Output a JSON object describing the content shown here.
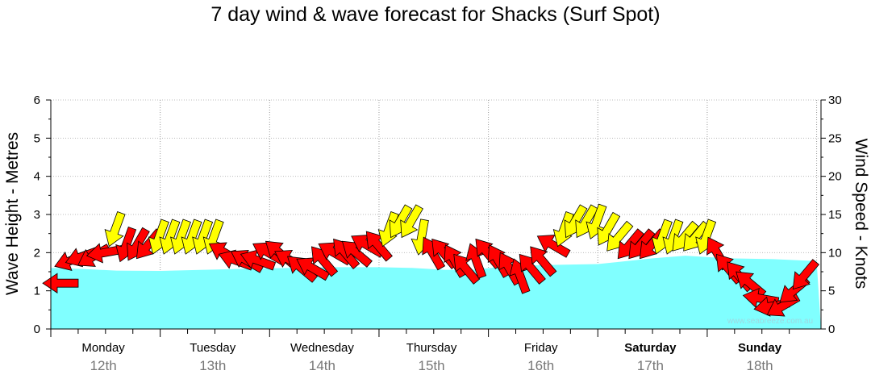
{
  "chart_data": {
    "type": "area",
    "title": "7 day wind & wave forecast for Shacks (Surf Spot)",
    "ylabel_left": "Wave Height - Metres",
    "ylabel_right": "Wind Speed - Knots",
    "ylim_left": [
      0,
      6
    ],
    "ylim_right": [
      0,
      30
    ],
    "yticks_left": [
      "0",
      "1",
      "2",
      "3",
      "4",
      "5",
      "6"
    ],
    "yticks_right": [
      "0",
      "5",
      "10",
      "15",
      "20",
      "25",
      "30"
    ],
    "days": [
      {
        "name": "Monday",
        "date": "12th",
        "bold": false
      },
      {
        "name": "Tuesday",
        "date": "13th",
        "bold": false
      },
      {
        "name": "Wednesday",
        "date": "14th",
        "bold": false
      },
      {
        "name": "Thursday",
        "date": "15th",
        "bold": false
      },
      {
        "name": "Friday",
        "date": "16th",
        "bold": false
      },
      {
        "name": "Saturday",
        "date": "17th",
        "bold": true
      },
      {
        "name": "Sunday",
        "date": "18th",
        "bold": true
      }
    ],
    "wave_series": {
      "name": "Wave Height",
      "x_days": [
        0,
        0.3,
        0.6,
        1.0,
        1.4,
        1.8,
        2.2,
        2.6,
        3.0,
        3.3,
        3.6,
        3.85,
        4.2,
        4.6,
        5.0,
        5.5,
        5.8,
        6.2,
        6.6,
        7.0
      ],
      "values": [
        1.6,
        1.57,
        1.53,
        1.52,
        1.55,
        1.58,
        1.6,
        1.62,
        1.62,
        1.6,
        1.55,
        1.55,
        1.65,
        1.68,
        1.7,
        1.85,
        1.92,
        1.85,
        1.83,
        1.78
      ]
    },
    "wind_series": {
      "name": "Wind Speed",
      "x_days": [
        0.0,
        0.1,
        0.2,
        0.3,
        0.4,
        0.5,
        0.6,
        0.7,
        0.8,
        0.9,
        1.0,
        1.1,
        1.2,
        1.3,
        1.4,
        1.5,
        1.6,
        1.7,
        1.8,
        1.9,
        2.0,
        2.1,
        2.2,
        2.3,
        2.4,
        2.5,
        2.6,
        2.7,
        2.8,
        2.9,
        3.0,
        3.1,
        3.2,
        3.3,
        3.4,
        3.5,
        3.6,
        3.7,
        3.8,
        3.9,
        4.0,
        4.1,
        4.2,
        4.3,
        4.4,
        4.5,
        4.6,
        4.7,
        4.8,
        4.9,
        5.0,
        5.1,
        5.2,
        5.3,
        5.4,
        5.5,
        5.6,
        5.7,
        5.8,
        5.9,
        6.0,
        6.1,
        6.2,
        6.3,
        6.4,
        6.5,
        6.6,
        6.7,
        6.8
      ],
      "values": [
        6,
        9,
        9.5,
        9.5,
        10,
        13,
        11,
        11,
        11,
        12,
        12,
        12,
        12,
        12,
        12,
        10,
        9,
        9,
        9,
        10,
        10,
        9,
        8,
        8,
        9,
        10,
        10,
        10,
        11,
        11,
        13,
        14,
        14,
        12,
        10,
        10,
        9,
        8,
        9,
        10,
        9,
        8,
        7,
        8,
        9,
        11,
        13,
        14,
        14,
        14,
        13,
        12,
        11,
        11,
        11,
        12,
        12,
        12,
        12,
        12,
        10,
        8,
        7,
        6,
        4,
        3,
        3,
        5,
        7
      ],
      "direction_deg": [
        270,
        250,
        250,
        240,
        260,
        200,
        200,
        210,
        220,
        200,
        200,
        200,
        200,
        200,
        200,
        300,
        290,
        300,
        290,
        300,
        310,
        300,
        310,
        300,
        320,
        300,
        320,
        310,
        300,
        320,
        200,
        210,
        210,
        190,
        330,
        320,
        330,
        320,
        340,
        320,
        330,
        330,
        340,
        320,
        320,
        300,
        200,
        210,
        210,
        200,
        210,
        220,
        220,
        220,
        220,
        200,
        200,
        220,
        220,
        200,
        330,
        320,
        320,
        310,
        280,
        260,
        240,
        230,
        220
      ],
      "color_by_speed": {
        "low": "#ff0000",
        "high": "#ffff00",
        "threshold": 12
      }
    },
    "watermark": "www.seabreeze.com.au",
    "grid": true
  }
}
